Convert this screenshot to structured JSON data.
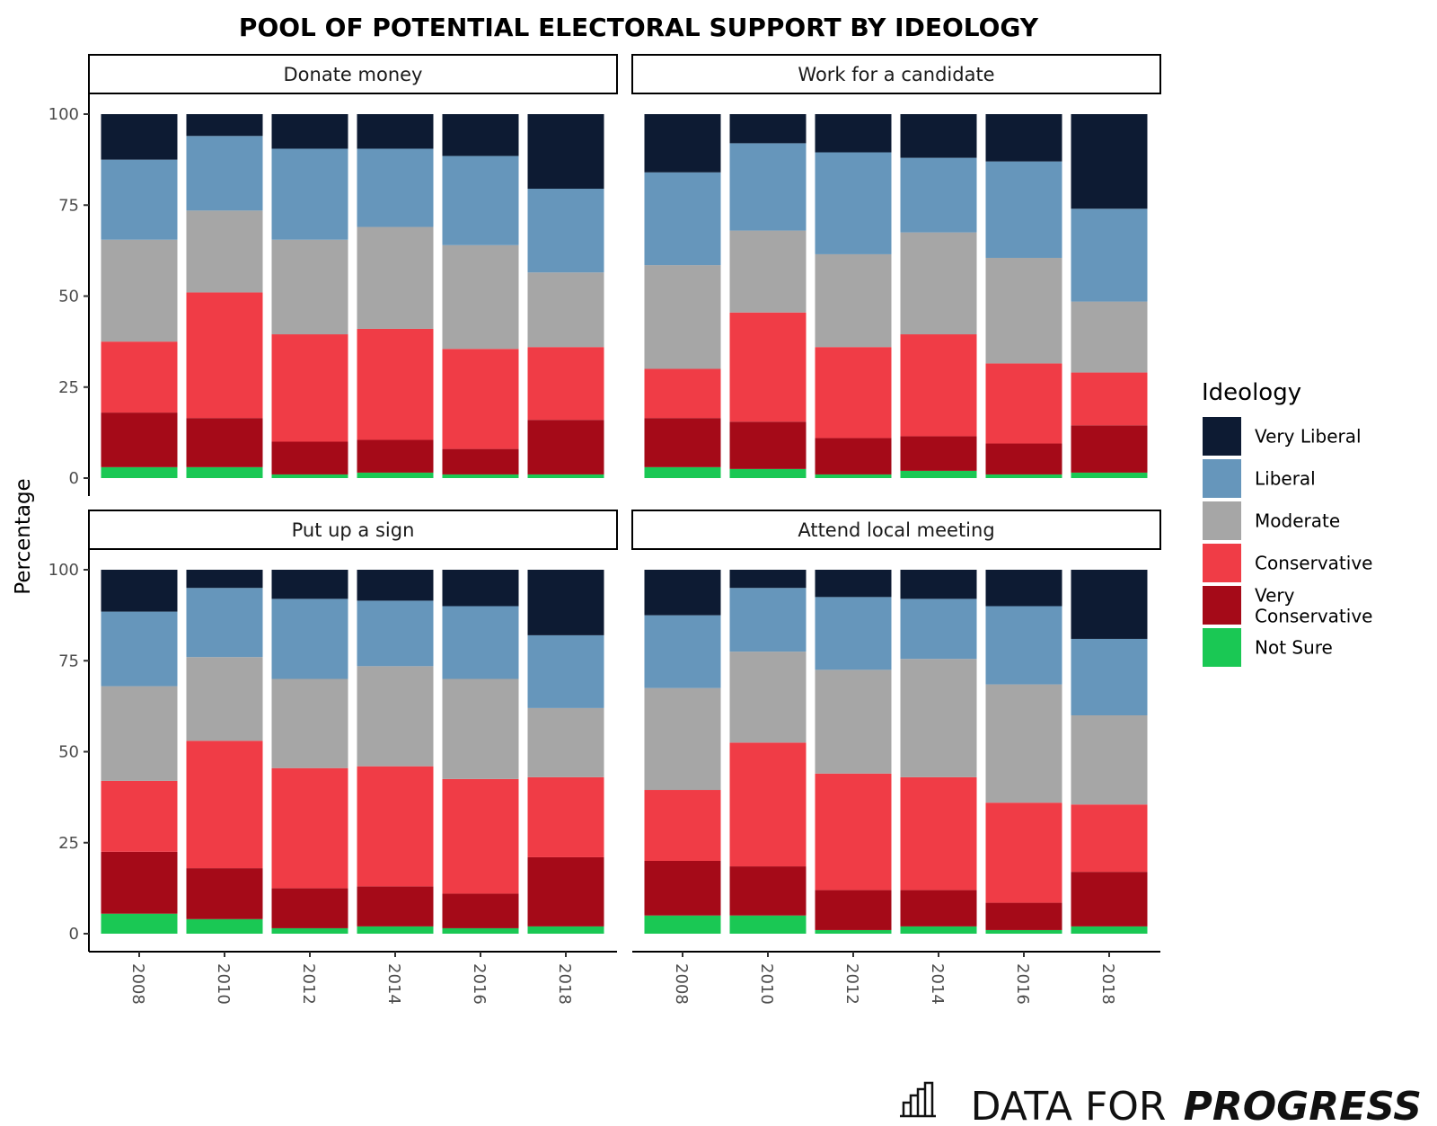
{
  "chart_data": {
    "type": "bar",
    "stacked": true,
    "title": "POOL OF POTENTIAL ELECTORAL SUPPORT BY IDEOLOGY",
    "ylabel": "Percentage",
    "xlabel": "",
    "ylim": [
      0,
      100
    ],
    "yticks": [
      "0",
      "25",
      "50",
      "75",
      "100"
    ],
    "categories": [
      "2008",
      "2010",
      "2012",
      "2014",
      "2016",
      "2018"
    ],
    "legend": {
      "title": "Ideology",
      "placement": "right",
      "entries": [
        {
          "name": "Very Liberal",
          "color": "#0d1b33",
          "lines": [
            "Very Liberal"
          ]
        },
        {
          "name": "Liberal",
          "color": "#6696bb",
          "lines": [
            "Liberal"
          ]
        },
        {
          "name": "Moderate",
          "color": "#a6a6a6",
          "lines": [
            "Moderate"
          ]
        },
        {
          "name": "Conservative",
          "color": "#f03c46",
          "lines": [
            "Conservative"
          ]
        },
        {
          "name": "Very Conservative",
          "color": "#a50a18",
          "lines": [
            "Very",
            "Conservative"
          ]
        },
        {
          "name": "Not Sure",
          "color": "#1ac854",
          "lines": [
            "Not Sure"
          ]
        }
      ]
    },
    "stack_order_bottom_to_top": [
      "Not Sure",
      "Very Conservative",
      "Conservative",
      "Moderate",
      "Liberal",
      "Very Liberal"
    ],
    "panels": [
      {
        "title": "Donate money",
        "series": [
          {
            "name": "Not Sure",
            "values": [
              3,
              3,
              1,
              1.5,
              1,
              1
            ]
          },
          {
            "name": "Very Conservative",
            "values": [
              15,
              13.5,
              9,
              9,
              7,
              15
            ]
          },
          {
            "name": "Conservative",
            "values": [
              19.5,
              34.5,
              29.5,
              30.5,
              27.5,
              20
            ]
          },
          {
            "name": "Moderate",
            "values": [
              28,
              22.5,
              26,
              28,
              28.5,
              20.5
            ]
          },
          {
            "name": "Liberal",
            "values": [
              22,
              20.5,
              25,
              21.5,
              24.5,
              23
            ]
          },
          {
            "name": "Very Liberal",
            "values": [
              12.5,
              6,
              9.5,
              9.5,
              11.5,
              20.5
            ]
          }
        ]
      },
      {
        "title": "Work for a candidate",
        "series": [
          {
            "name": "Not Sure",
            "values": [
              3,
              2.5,
              1,
              2,
              1,
              1.5
            ]
          },
          {
            "name": "Very Conservative",
            "values": [
              13.5,
              13,
              10,
              9.5,
              8.5,
              13
            ]
          },
          {
            "name": "Conservative",
            "values": [
              13.5,
              30,
              25,
              28,
              22,
              14.5
            ]
          },
          {
            "name": "Moderate",
            "values": [
              28.5,
              22.5,
              25.5,
              28,
              29,
              19.5
            ]
          },
          {
            "name": "Liberal",
            "values": [
              25.5,
              24,
              28,
              20.5,
              26.5,
              25.5
            ]
          },
          {
            "name": "Very Liberal",
            "values": [
              16,
              8,
              10.5,
              12,
              13,
              26
            ]
          }
        ]
      },
      {
        "title": "Put up a sign",
        "series": [
          {
            "name": "Not Sure",
            "values": [
              5.5,
              4,
              1.5,
              2,
              1.5,
              2
            ]
          },
          {
            "name": "Very Conservative",
            "values": [
              17,
              14,
              11,
              11,
              9.5,
              19
            ]
          },
          {
            "name": "Conservative",
            "values": [
              19.5,
              35,
              33,
              33,
              31.5,
              22
            ]
          },
          {
            "name": "Moderate",
            "values": [
              26,
              23,
              24.5,
              27.5,
              27.5,
              19
            ]
          },
          {
            "name": "Liberal",
            "values": [
              20.5,
              19,
              22,
              18,
              20,
              20
            ]
          },
          {
            "name": "Very Liberal",
            "values": [
              11.5,
              5,
              8,
              8.5,
              10,
              18
            ]
          }
        ]
      },
      {
        "title": "Attend local meeting",
        "series": [
          {
            "name": "Not Sure",
            "values": [
              5,
              5,
              1,
              2,
              1,
              2
            ]
          },
          {
            "name": "Very Conservative",
            "values": [
              15,
              13.5,
              11,
              10,
              7.5,
              15
            ]
          },
          {
            "name": "Conservative",
            "values": [
              19.5,
              34,
              32,
              31,
              27.5,
              18.5
            ]
          },
          {
            "name": "Moderate",
            "values": [
              28,
              25,
              28.5,
              32.5,
              32.5,
              24.5
            ]
          },
          {
            "name": "Liberal",
            "values": [
              20,
              17.5,
              20,
              16.5,
              21.5,
              21
            ]
          },
          {
            "name": "Very Liberal",
            "values": [
              12.5,
              5,
              7.5,
              8,
              10,
              19
            ]
          }
        ]
      }
    ]
  },
  "branding": {
    "prefix": "DATA FOR",
    "emphasis": "PROGRESS",
    "logo_icon": "bar-chart-logo-icon"
  }
}
